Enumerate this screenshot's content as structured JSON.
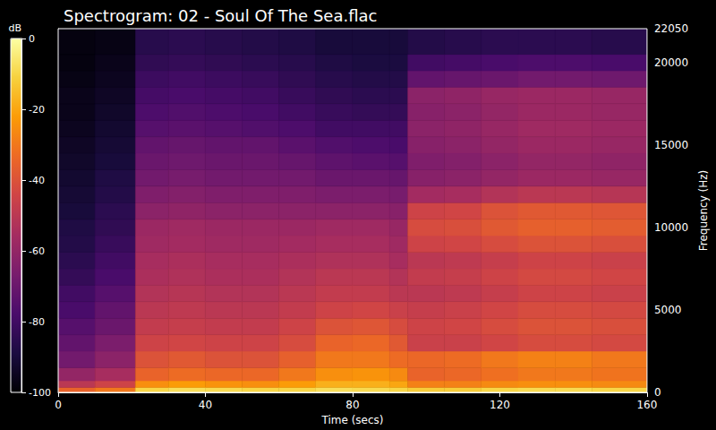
{
  "chart_data": {
    "type": "heatmap",
    "title": "Spectrogram: 02 - Soul Of The Sea.flac",
    "x_label": "Time (secs)",
    "y_label": "Frequency (Hz)",
    "xlim": [
      0,
      160
    ],
    "xticks": [
      0,
      40,
      80,
      120,
      160
    ],
    "ylim": [
      0,
      22050
    ],
    "yticks": [
      0,
      5000,
      10000,
      15000,
      20000
    ],
    "x_bins": [
      0,
      10,
      21,
      30,
      40,
      50,
      60,
      70,
      80,
      90,
      95,
      105,
      115,
      125,
      135,
      145,
      160
    ],
    "y_bins": [
      0,
      300,
      700,
      1500,
      2500,
      3500,
      4500,
      5500,
      6500,
      7500,
      8500,
      9500,
      10500,
      11500,
      12500,
      13500,
      14500,
      15500,
      16500,
      17500,
      18500,
      19500,
      20500,
      22050
    ],
    "cells": [
      [
        -35,
        -30,
        -10,
        -8,
        -9,
        -10,
        -10,
        -8,
        -9,
        -10,
        -12,
        -12,
        -10,
        -9,
        -9,
        -10
      ],
      [
        -50,
        -45,
        -25,
        -22,
        -24,
        -25,
        -22,
        -18,
        -18,
        -20,
        -28,
        -28,
        -26,
        -25,
        -25,
        -26
      ],
      [
        -60,
        -55,
        -35,
        -33,
        -34,
        -34,
        -30,
        -25,
        -24,
        -26,
        -35,
        -34,
        -32,
        -30,
        -30,
        -31
      ],
      [
        -68,
        -62,
        -40,
        -38,
        -40,
        -40,
        -36,
        -30,
        -30,
        -33,
        -34,
        -33,
        -30,
        -28,
        -28,
        -30
      ],
      [
        -72,
        -66,
        -45,
        -44,
        -45,
        -45,
        -42,
        -35,
        -34,
        -38,
        -46,
        -46,
        -44,
        -42,
        -42,
        -43
      ],
      [
        -75,
        -70,
        -48,
        -47,
        -48,
        -48,
        -45,
        -40,
        -39,
        -42,
        -45,
        -44,
        -42,
        -40,
        -40,
        -41
      ],
      [
        -78,
        -72,
        -50,
        -49,
        -50,
        -50,
        -48,
        -45,
        -44,
        -46,
        -47,
        -46,
        -44,
        -42,
        -42,
        -43
      ],
      [
        -80,
        -75,
        -52,
        -51,
        -52,
        -52,
        -50,
        -48,
        -48,
        -50,
        -50,
        -49,
        -47,
        -45,
        -45,
        -46
      ],
      [
        -83,
        -78,
        -54,
        -53,
        -54,
        -54,
        -52,
        -50,
        -50,
        -52,
        -48,
        -47,
        -45,
        -43,
        -43,
        -44
      ],
      [
        -85,
        -80,
        -55,
        -54,
        -55,
        -55,
        -54,
        -53,
        -53,
        -55,
        -50,
        -49,
        -47,
        -45,
        -45,
        -46
      ],
      [
        -87,
        -82,
        -57,
        -56,
        -57,
        -57,
        -56,
        -55,
        -55,
        -57,
        -45,
        -44,
        -42,
        -40,
        -40,
        -41
      ],
      [
        -88,
        -84,
        -58,
        -57,
        -58,
        -58,
        -58,
        -57,
        -57,
        -59,
        -42,
        -41,
        -38,
        -36,
        -36,
        -37
      ],
      [
        -90,
        -85,
        -62,
        -61,
        -62,
        -62,
        -62,
        -62,
        -62,
        -63,
        -45,
        -44,
        -40,
        -38,
        -38,
        -39
      ],
      [
        -91,
        -87,
        -65,
        -64,
        -65,
        -65,
        -65,
        -66,
        -66,
        -67,
        -56,
        -55,
        -52,
        -50,
        -50,
        -51
      ],
      [
        -92,
        -88,
        -68,
        -67,
        -68,
        -68,
        -68,
        -70,
        -70,
        -71,
        -63,
        -62,
        -60,
        -58,
        -58,
        -59
      ],
      [
        -93,
        -90,
        -70,
        -69,
        -70,
        -70,
        -71,
        -73,
        -74,
        -75,
        -65,
        -64,
        -62,
        -60,
        -60,
        -61
      ],
      [
        -94,
        -91,
        -72,
        -71,
        -72,
        -72,
        -74,
        -76,
        -77,
        -78,
        -63,
        -62,
        -60,
        -58,
        -58,
        -59
      ],
      [
        -95,
        -92,
        -75,
        -74,
        -75,
        -76,
        -77,
        -80,
        -80,
        -80,
        -62,
        -61,
        -59,
        -57,
        -57,
        -58
      ],
      [
        -96,
        -93,
        -77,
        -76,
        -77,
        -78,
        -80,
        -82,
        -83,
        -83,
        -63,
        -62,
        -60,
        -58,
        -58,
        -59
      ],
      [
        -96,
        -94,
        -79,
        -78,
        -79,
        -80,
        -82,
        -84,
        -85,
        -85,
        -62,
        -61,
        -59,
        -58,
        -58,
        -59
      ],
      [
        -97,
        -95,
        -81,
        -80,
        -81,
        -82,
        -84,
        -86,
        -87,
        -87,
        -72,
        -71,
        -70,
        -68,
        -68,
        -69
      ],
      [
        -98,
        -96,
        -84,
        -83,
        -84,
        -85,
        -86,
        -88,
        -89,
        -89,
        -80,
        -79,
        -78,
        -77,
        -77,
        -78
      ],
      [
        -98,
        -97,
        -86,
        -85,
        -86,
        -87,
        -88,
        -90,
        -90,
        -90,
        -87,
        -86,
        -85,
        -85,
        -85,
        -86
      ]
    ],
    "colorbar": {
      "label": "dB",
      "range": [
        -100,
        0
      ],
      "ticks": [
        -100,
        -80,
        -60,
        -40,
        -20,
        0
      ]
    }
  }
}
